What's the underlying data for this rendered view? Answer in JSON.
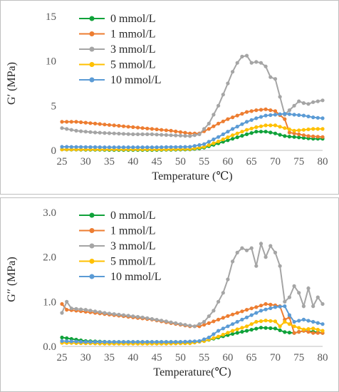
{
  "chart_data": [
    {
      "type": "line",
      "xlabel": "Temperature (℃)",
      "ylabel": "G′ (MPa)",
      "xlim": [
        25,
        80
      ],
      "ylim": [
        0,
        15
      ],
      "xticks": [
        "25",
        "30",
        "35",
        "40",
        "45",
        "50",
        "55",
        "60",
        "65",
        "70",
        "75",
        "80"
      ],
      "yticks": [
        "0",
        "5",
        "10",
        "15"
      ],
      "grid": false,
      "legend": "top-left",
      "series": [
        {
          "name": "0 mmol/L",
          "color": "#10a23a",
          "points": [
            [
              25,
              0.1
            ],
            [
              35,
              0.05
            ],
            [
              45,
              0.05
            ],
            [
              52,
              0.1
            ],
            [
              55,
              0.3
            ],
            [
              58,
              0.8
            ],
            [
              61,
              1.3
            ],
            [
              64,
              1.8
            ],
            [
              66,
              2.1
            ],
            [
              68,
              2.1
            ],
            [
              70,
              1.9
            ],
            [
              72,
              1.6
            ],
            [
              74,
              1.5
            ],
            [
              76,
              1.4
            ],
            [
              78,
              1.3
            ],
            [
              80,
              1.3
            ]
          ]
        },
        {
          "name": "1 mmol/L",
          "color": "#ed7d31",
          "points": [
            [
              25,
              3.2
            ],
            [
              28,
              3.2
            ],
            [
              32,
              3.0
            ],
            [
              36,
              2.8
            ],
            [
              40,
              2.6
            ],
            [
              44,
              2.4
            ],
            [
              48,
              2.2
            ],
            [
              52,
              1.9
            ],
            [
              54,
              1.9
            ],
            [
              56,
              2.4
            ],
            [
              58,
              3.0
            ],
            [
              60,
              3.5
            ],
            [
              62,
              3.9
            ],
            [
              64,
              4.3
            ],
            [
              66,
              4.5
            ],
            [
              68,
              4.6
            ],
            [
              70,
              4.4
            ],
            [
              72,
              3.5
            ],
            [
              73,
              2.0
            ],
            [
              75,
              1.8
            ],
            [
              77,
              1.6
            ],
            [
              80,
              1.5
            ]
          ]
        },
        {
          "name": "3 mmol/L",
          "color": "#a5a5a5",
          "points": [
            [
              25,
              2.5
            ],
            [
              28,
              2.2
            ],
            [
              32,
              2.0
            ],
            [
              36,
              1.9
            ],
            [
              40,
              1.8
            ],
            [
              44,
              1.8
            ],
            [
              48,
              1.7
            ],
            [
              52,
              1.6
            ],
            [
              54,
              1.8
            ],
            [
              56,
              3.0
            ],
            [
              58,
              5.0
            ],
            [
              60,
              7.5
            ],
            [
              61,
              8.8
            ],
            [
              62,
              9.8
            ],
            [
              63,
              10.5
            ],
            [
              64,
              10.6
            ],
            [
              65,
              9.8
            ],
            [
              66,
              9.9
            ],
            [
              67,
              9.8
            ],
            [
              68,
              9.4
            ],
            [
              69,
              8.2
            ],
            [
              70,
              8.0
            ],
            [
              71,
              6.0
            ],
            [
              72,
              4.0
            ],
            [
              73,
              4.5
            ],
            [
              74,
              5.0
            ],
            [
              75,
              5.5
            ],
            [
              76,
              5.3
            ],
            [
              77,
              5.2
            ],
            [
              78,
              5.4
            ],
            [
              79,
              5.5
            ],
            [
              80,
              5.6
            ]
          ]
        },
        {
          "name": "5 mmol/L",
          "color": "#ffc000",
          "points": [
            [
              25,
              0.1
            ],
            [
              35,
              0.1
            ],
            [
              45,
              0.1
            ],
            [
              52,
              0.15
            ],
            [
              55,
              0.4
            ],
            [
              58,
              1.0
            ],
            [
              61,
              1.7
            ],
            [
              64,
              2.3
            ],
            [
              66,
              2.6
            ],
            [
              68,
              2.8
            ],
            [
              70,
              2.8
            ],
            [
              72,
              2.5
            ],
            [
              74,
              2.2
            ],
            [
              76,
              2.3
            ],
            [
              78,
              2.4
            ],
            [
              80,
              2.4
            ]
          ]
        },
        {
          "name": "10 mmol/L",
          "color": "#5b9bd5",
          "points": [
            [
              25,
              0.4
            ],
            [
              35,
              0.35
            ],
            [
              45,
              0.35
            ],
            [
              52,
              0.4
            ],
            [
              55,
              0.7
            ],
            [
              58,
              1.5
            ],
            [
              61,
              2.4
            ],
            [
              64,
              3.2
            ],
            [
              66,
              3.6
            ],
            [
              68,
              3.9
            ],
            [
              70,
              4.0
            ],
            [
              72,
              4.1
            ],
            [
              74,
              4.0
            ],
            [
              76,
              3.9
            ],
            [
              78,
              3.7
            ],
            [
              80,
              3.6
            ]
          ]
        }
      ]
    },
    {
      "type": "line",
      "xlabel": "Temperature(℃)",
      "ylabel": "G′′ (MPa)",
      "xlim": [
        25,
        80
      ],
      "ylim": [
        0,
        3
      ],
      "xticks": [
        "25",
        "30",
        "35",
        "40",
        "45",
        "50",
        "55",
        "60",
        "65",
        "70",
        "75",
        "80"
      ],
      "yticks": [
        "0.0",
        "1.0",
        "2.0",
        "3.0"
      ],
      "grid": false,
      "legend": "top-left",
      "series": [
        {
          "name": "0 mmol/L",
          "color": "#10a23a",
          "points": [
            [
              25,
              0.2
            ],
            [
              30,
              0.12
            ],
            [
              35,
              0.1
            ],
            [
              45,
              0.1
            ],
            [
              52,
              0.1
            ],
            [
              55,
              0.12
            ],
            [
              58,
              0.2
            ],
            [
              61,
              0.28
            ],
            [
              64,
              0.35
            ],
            [
              67,
              0.42
            ],
            [
              70,
              0.4
            ],
            [
              72,
              0.32
            ],
            [
              74,
              0.3
            ],
            [
              76,
              0.35
            ],
            [
              78,
              0.33
            ],
            [
              80,
              0.3
            ]
          ]
        },
        {
          "name": "1 mmol/L",
          "color": "#ed7d31",
          "points": [
            [
              25,
              0.95
            ],
            [
              26,
              0.82
            ],
            [
              28,
              0.8
            ],
            [
              32,
              0.75
            ],
            [
              36,
              0.7
            ],
            [
              40,
              0.65
            ],
            [
              44,
              0.6
            ],
            [
              48,
              0.52
            ],
            [
              52,
              0.45
            ],
            [
              54,
              0.45
            ],
            [
              56,
              0.52
            ],
            [
              58,
              0.6
            ],
            [
              60,
              0.68
            ],
            [
              62,
              0.75
            ],
            [
              64,
              0.82
            ],
            [
              66,
              0.88
            ],
            [
              68,
              0.95
            ],
            [
              70,
              0.92
            ],
            [
              71,
              0.9
            ],
            [
              72,
              0.6
            ],
            [
              73,
              0.65
            ],
            [
              74,
              0.3
            ],
            [
              76,
              0.35
            ],
            [
              78,
              0.3
            ],
            [
              80,
              0.3
            ]
          ]
        },
        {
          "name": "3 mmol/L",
          "color": "#a5a5a5",
          "points": [
            [
              25,
              0.75
            ],
            [
              26,
              1.0
            ],
            [
              27,
              0.85
            ],
            [
              30,
              0.82
            ],
            [
              34,
              0.75
            ],
            [
              38,
              0.7
            ],
            [
              42,
              0.65
            ],
            [
              46,
              0.58
            ],
            [
              50,
              0.5
            ],
            [
              53,
              0.45
            ],
            [
              55,
              0.55
            ],
            [
              57,
              0.8
            ],
            [
              59,
              1.2
            ],
            [
              60,
              1.5
            ],
            [
              61,
              1.9
            ],
            [
              62,
              2.1
            ],
            [
              63,
              2.2
            ],
            [
              64,
              2.15
            ],
            [
              65,
              2.2
            ],
            [
              66,
              1.8
            ],
            [
              67,
              2.3
            ],
            [
              68,
              2.0
            ],
            [
              69,
              2.25
            ],
            [
              70,
              2.1
            ],
            [
              71,
              1.8
            ],
            [
              72,
              1.0
            ],
            [
              73,
              1.1
            ],
            [
              74,
              1.35
            ],
            [
              75,
              1.2
            ],
            [
              76,
              0.9
            ],
            [
              77,
              1.3
            ],
            [
              78,
              0.9
            ],
            [
              79,
              1.1
            ],
            [
              80,
              0.95
            ]
          ]
        },
        {
          "name": "5 mmol/L",
          "color": "#ffc000",
          "points": [
            [
              25,
              0.08
            ],
            [
              35,
              0.06
            ],
            [
              45,
              0.06
            ],
            [
              52,
              0.07
            ],
            [
              55,
              0.12
            ],
            [
              58,
              0.22
            ],
            [
              61,
              0.35
            ],
            [
              64,
              0.45
            ],
            [
              66,
              0.55
            ],
            [
              68,
              0.58
            ],
            [
              70,
              0.56
            ],
            [
              71,
              0.45
            ],
            [
              72,
              0.55
            ],
            [
              74,
              0.45
            ],
            [
              76,
              0.38
            ],
            [
              78,
              0.4
            ],
            [
              80,
              0.35
            ]
          ]
        },
        {
          "name": "10 mmol/L",
          "color": "#5b9bd5",
          "points": [
            [
              25,
              0.12
            ],
            [
              30,
              0.1
            ],
            [
              40,
              0.1
            ],
            [
              50,
              0.1
            ],
            [
              54,
              0.12
            ],
            [
              56,
              0.2
            ],
            [
              58,
              0.35
            ],
            [
              61,
              0.5
            ],
            [
              64,
              0.65
            ],
            [
              67,
              0.8
            ],
            [
              70,
              0.88
            ],
            [
              72,
              0.9
            ],
            [
              73,
              0.7
            ],
            [
              74,
              0.55
            ],
            [
              76,
              0.6
            ],
            [
              78,
              0.55
            ],
            [
              80,
              0.5
            ]
          ]
        }
      ]
    }
  ]
}
